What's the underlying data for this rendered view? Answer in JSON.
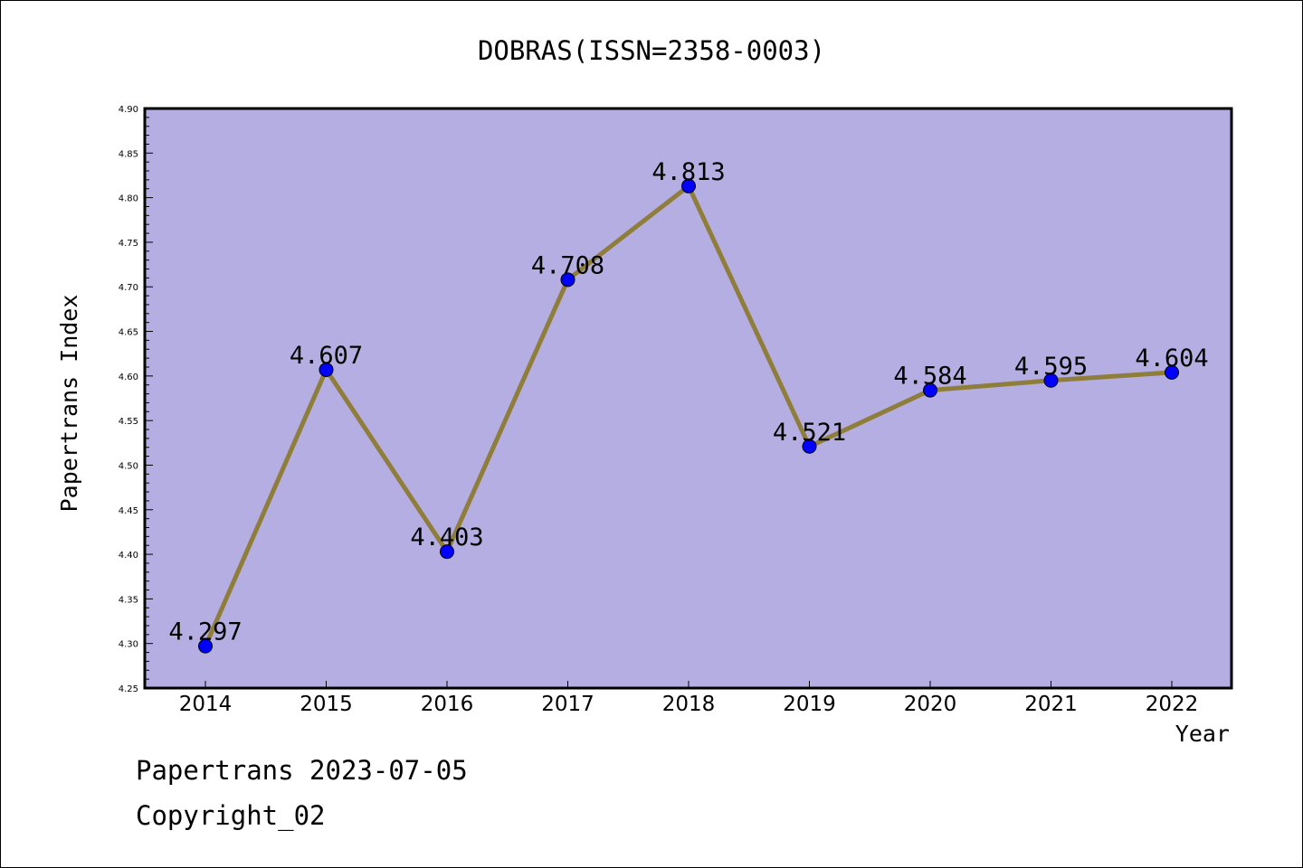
{
  "chart_data": {
    "type": "line",
    "title": "DOBRAS(ISSN=2358-0003)",
    "xlabel": "Year",
    "ylabel": "Papertrans Index",
    "x": [
      "2014",
      "2015",
      "2016",
      "2017",
      "2018",
      "2019",
      "2020",
      "2021",
      "2022"
    ],
    "values": [
      4.297,
      4.607,
      4.403,
      4.708,
      4.813,
      4.521,
      4.584,
      4.595,
      4.604
    ],
    "data_labels": [
      "4.297",
      "4.607",
      "4.403",
      "4.708",
      "4.813",
      "4.521",
      "4.584",
      "4.595",
      "4.604"
    ],
    "ylim": [
      4.25,
      4.9
    ],
    "yticks": [
      "4.25",
      "4.30",
      "4.35",
      "4.40",
      "4.45",
      "4.50",
      "4.55",
      "4.60",
      "4.65",
      "4.70",
      "4.75",
      "4.80",
      "4.85",
      "4.90"
    ],
    "grid": false,
    "legend": "none",
    "colors": {
      "plot_background": "#b5aee2",
      "line": "#8f7d3a",
      "marker": "#0000ff"
    }
  },
  "footer": {
    "line1": "Papertrans 2023-07-05",
    "line2": "Copyright_02"
  }
}
